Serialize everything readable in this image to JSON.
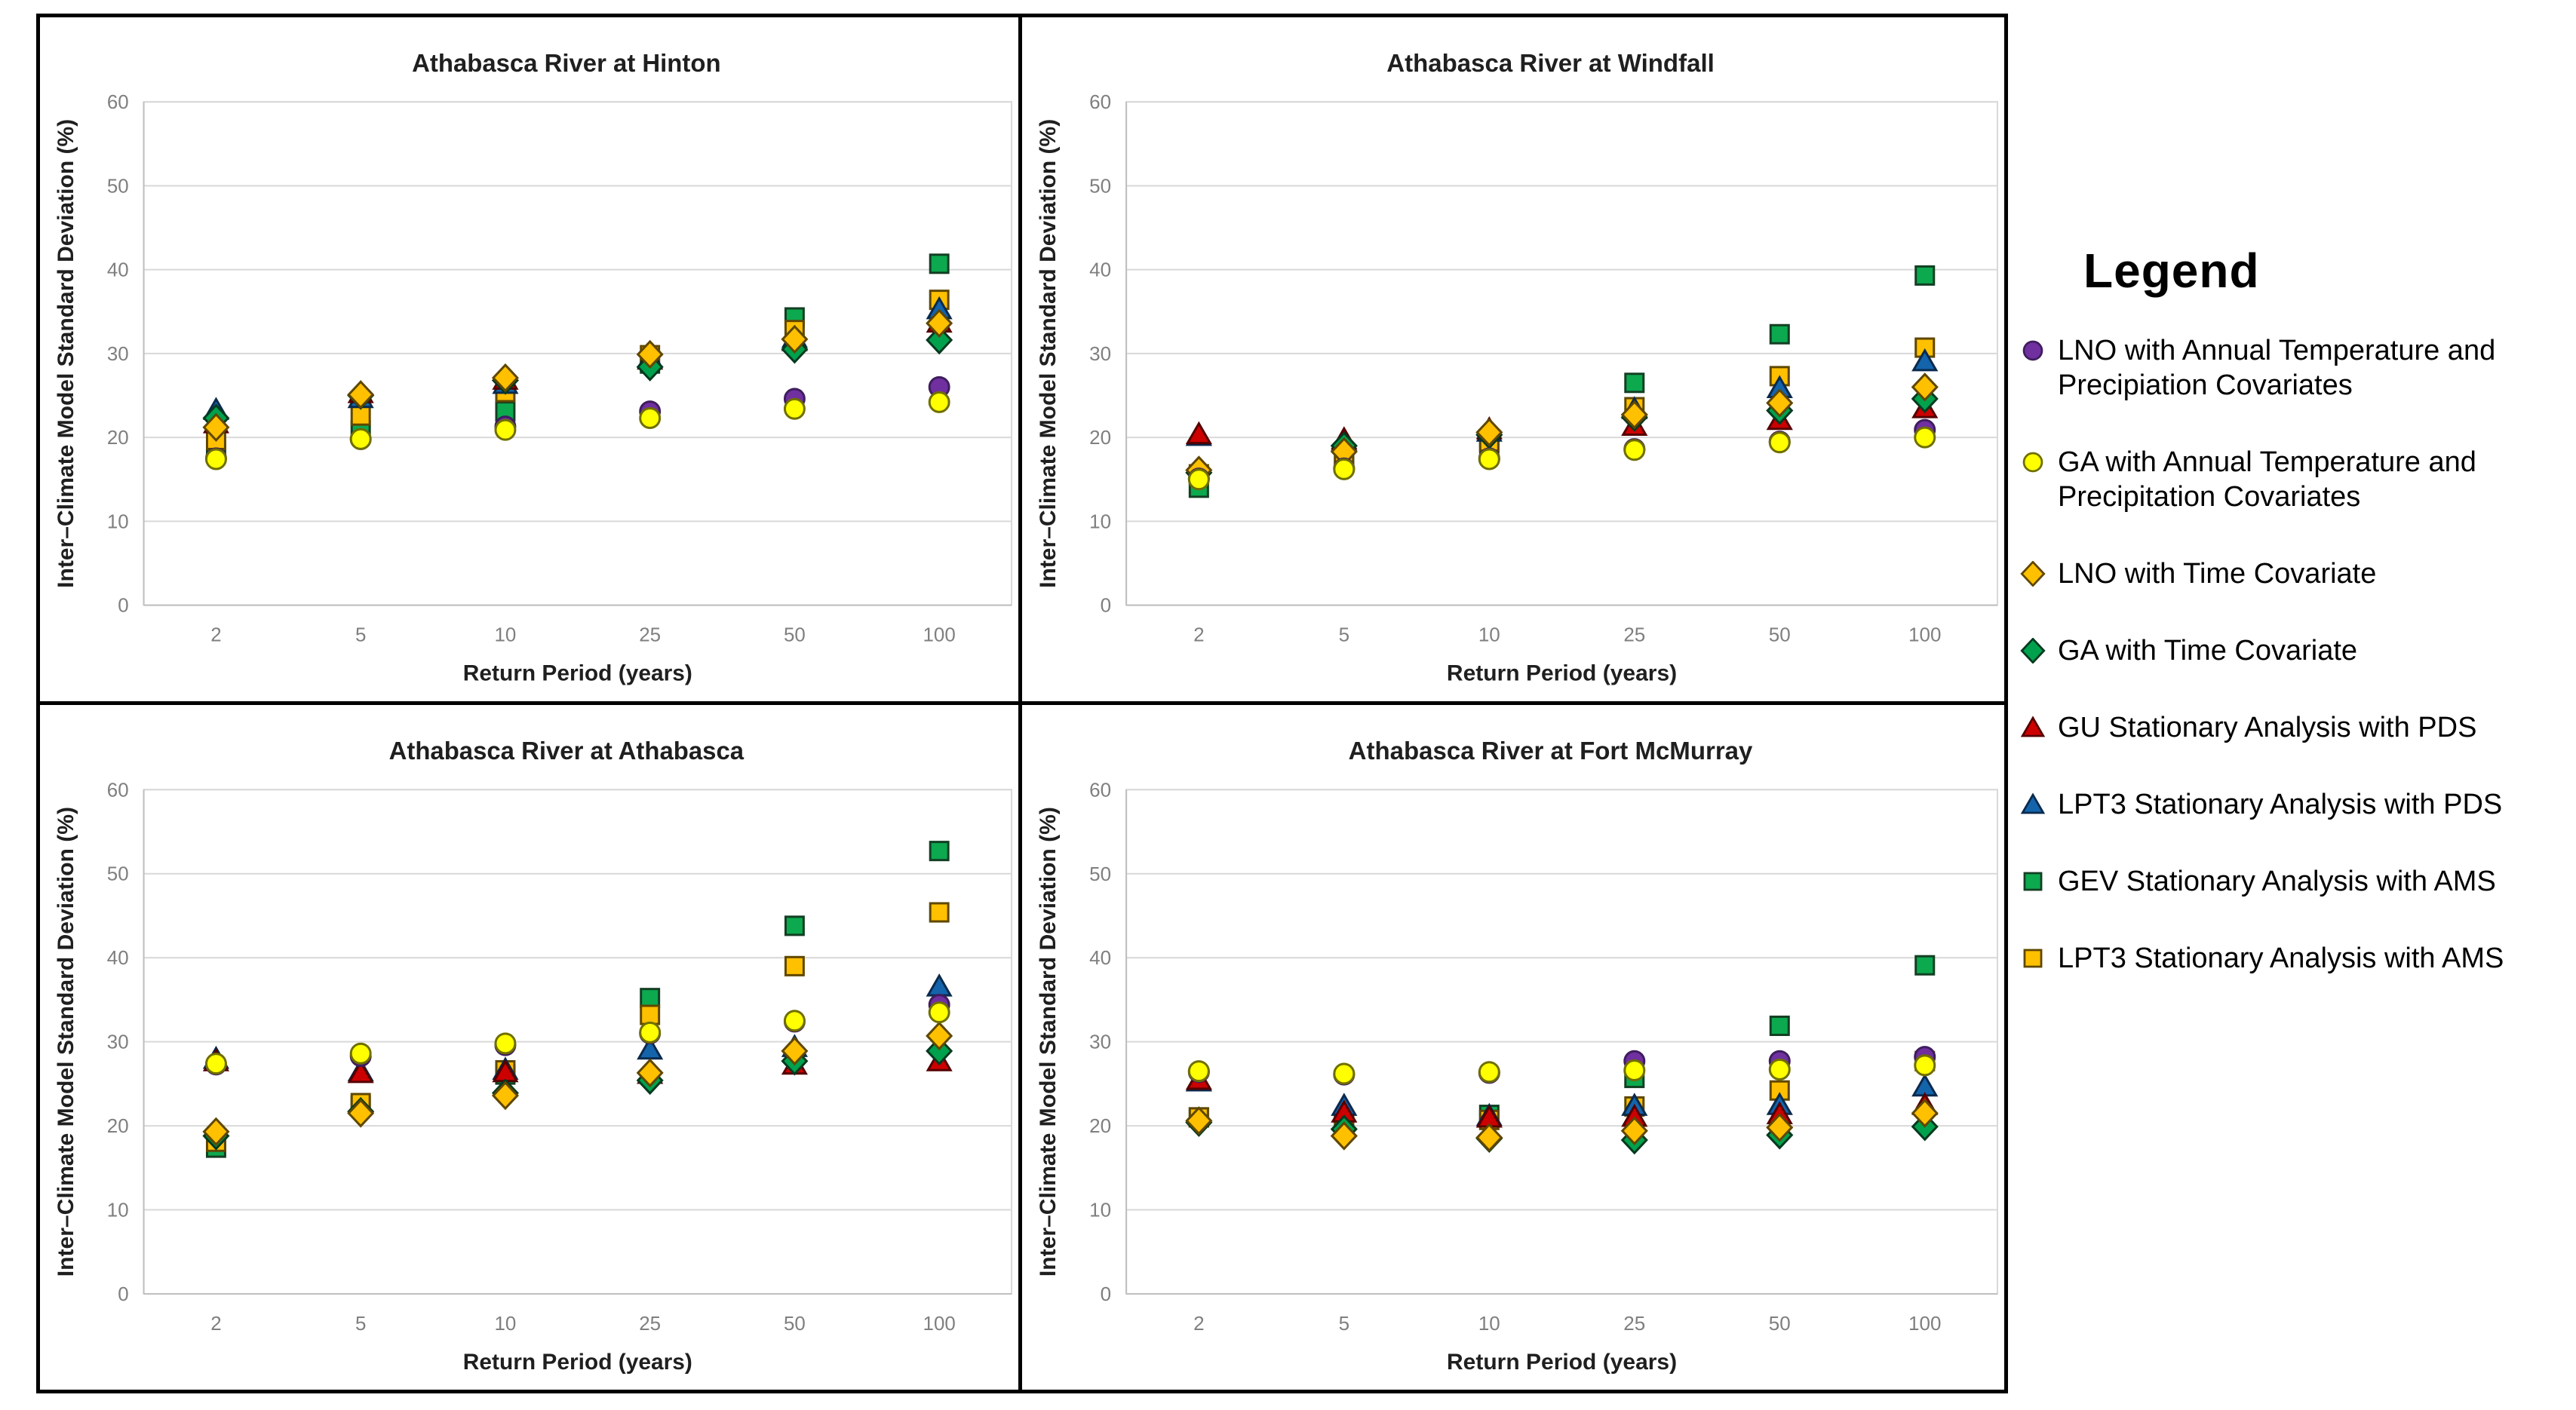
{
  "legend": {
    "title": "Legend",
    "position": "right",
    "entries": [
      {
        "key": "lno-covariates",
        "label": "LNO with Annual Temperature and Precipiation Covariates",
        "marker": "circle",
        "fill": "#7030A0",
        "stroke": "#3F1D5E"
      },
      {
        "key": "ga-covariates",
        "label": "GA with Annual Temperature and Precipitation Covariates",
        "marker": "circle",
        "fill": "#FFFF00",
        "stroke": "#6F6F00"
      },
      {
        "key": "lno-time",
        "label": "LNO with Time Covariate",
        "marker": "diamond",
        "fill": "#FFC000",
        "stroke": "#5F4700"
      },
      {
        "key": "ga-time",
        "label": "GA with Time Covariate",
        "marker": "diamond",
        "fill": "#00A14D",
        "stroke": "#05391F"
      },
      {
        "key": "gu-pds",
        "label": "GU Stationary Analysis with PDS",
        "marker": "triangle",
        "fill": "#CC0000",
        "stroke": "#550000"
      },
      {
        "key": "lpt3-pds",
        "label": "LPT3 Stationary Analysis with PDS",
        "marker": "triangle",
        "fill": "#1464AC",
        "stroke": "#0A2A4D"
      },
      {
        "key": "gev-ams",
        "label": "GEV Stationary Analysis with AMS",
        "marker": "square",
        "fill": "#0CA94F",
        "stroke": "#133F23"
      },
      {
        "key": "lpt3-ams",
        "label": "LPT3 Stationary Analysis with AMS",
        "marker": "square",
        "fill": "#FFC000",
        "stroke": "#5F4700"
      }
    ]
  },
  "chart_data": [
    {
      "type": "scatter",
      "key": "hinton",
      "title": "Athabasca River at Hinton",
      "xlabel": "Return Period (years)",
      "ylabel": "Inter–Climate Model Standard Deviation (%)",
      "categories": [
        2,
        5,
        10,
        25,
        50,
        100
      ],
      "xticklabels": [
        "2",
        "5",
        "10",
        "25",
        "50",
        "100"
      ],
      "ylim": [
        0,
        60
      ],
      "yticks": [
        0,
        10,
        20,
        30,
        40,
        50,
        60
      ],
      "grid": true,
      "series": [
        {
          "name": "LNO with Annual Temperature and Precipiation Covariates",
          "values": [
            17.5,
            19.8,
            21.3,
            23.1,
            24.6,
            26.0
          ]
        },
        {
          "name": "GA with Annual Temperature and Precipitation Covariates",
          "values": [
            17.4,
            19.8,
            20.9,
            22.3,
            23.4,
            24.2
          ]
        },
        {
          "name": "LNO with Time Covariate",
          "values": [
            21.2,
            25.1,
            27.1,
            29.9,
            31.7,
            33.6
          ]
        },
        {
          "name": "GA with Time Covariate",
          "values": [
            22.3,
            25.0,
            26.8,
            28.4,
            30.5,
            31.6
          ]
        },
        {
          "name": "GU Stationary Analysis with PDS",
          "values": [
            21.7,
            25.3,
            26.9,
            29.3,
            31.5,
            33.7
          ]
        },
        {
          "name": "LPT3 Stationary Analysis with PDS",
          "values": [
            23.3,
            24.7,
            26.4,
            29.5,
            31.9,
            35.3
          ]
        },
        {
          "name": "GEV Stationary Analysis with AMS",
          "values": [
            18.4,
            20.8,
            23.1,
            28.8,
            34.3,
            40.7
          ]
        },
        {
          "name": "LPT3 Stationary Analysis with AMS",
          "values": [
            19.7,
            22.6,
            25.4,
            29.8,
            32.8,
            36.4
          ]
        }
      ]
    },
    {
      "type": "scatter",
      "key": "windfall",
      "title": "Athabasca River at Windfall",
      "xlabel": "Return Period (years)",
      "ylabel": "Inter–Climate Model Standard Deviation (%)",
      "categories": [
        2,
        5,
        10,
        25,
        50,
        100
      ],
      "xticklabels": [
        "2",
        "5",
        "10",
        "25",
        "50",
        "100"
      ],
      "ylim": [
        0,
        60
      ],
      "yticks": [
        0,
        10,
        20,
        30,
        40,
        50,
        60
      ],
      "grid": true,
      "series": [
        {
          "name": "LNO with Annual Temperature and Precipiation Covariates",
          "values": [
            15.1,
            16.3,
            17.5,
            18.6,
            19.5,
            20.9
          ]
        },
        {
          "name": "GA with Annual Temperature and Precipitation Covariates",
          "values": [
            15.0,
            16.2,
            17.4,
            18.5,
            19.4,
            20.0
          ]
        },
        {
          "name": "LNO with Time Covariate",
          "values": [
            16.1,
            18.3,
            20.6,
            22.7,
            24.1,
            26.0
          ]
        },
        {
          "name": "GA with Time Covariate",
          "values": [
            15.8,
            19.0,
            20.3,
            22.4,
            23.2,
            24.6
          ]
        },
        {
          "name": "GU Stationary Analysis with PDS",
          "values": [
            20.4,
            19.8,
            21.0,
            21.4,
            22.1,
            23.5
          ]
        },
        {
          "name": "LPT3 Stationary Analysis with PDS",
          "values": [
            20.2,
            19.6,
            20.7,
            23.4,
            25.9,
            29.1
          ]
        },
        {
          "name": "GEV Stationary Analysis with AMS",
          "values": [
            14.0,
            17.1,
            19.3,
            26.5,
            32.3,
            39.3
          ]
        },
        {
          "name": "LPT3 Stationary Analysis with AMS",
          "values": [
            15.6,
            17.0,
            19.5,
            23.6,
            27.3,
            30.7
          ]
        }
      ]
    },
    {
      "type": "scatter",
      "key": "athabasca",
      "title": "Athabasca River at Athabasca",
      "xlabel": "Return Period (years)",
      "ylabel": "Inter–Climate Model Standard Deviation (%)",
      "categories": [
        2,
        5,
        10,
        25,
        50,
        100
      ],
      "xticklabels": [
        "2",
        "5",
        "10",
        "25",
        "50",
        "100"
      ],
      "ylim": [
        0,
        60
      ],
      "yticks": [
        0,
        10,
        20,
        30,
        40,
        50,
        60
      ],
      "grid": true,
      "series": [
        {
          "name": "LNO with Annual Temperature and Precipiation Covariates",
          "values": [
            27.3,
            28.3,
            29.6,
            31.0,
            32.4,
            34.4
          ]
        },
        {
          "name": "GA with Annual Temperature and Precipitation Covariates",
          "values": [
            27.4,
            28.6,
            29.8,
            31.1,
            32.5,
            33.5
          ]
        },
        {
          "name": "LNO with Time Covariate",
          "values": [
            19.3,
            21.5,
            23.6,
            26.3,
            28.9,
            30.7
          ]
        },
        {
          "name": "GA with Time Covariate",
          "values": [
            18.8,
            21.7,
            23.9,
            25.4,
            27.7,
            28.9
          ]
        },
        {
          "name": "GU Stationary Analysis with PDS",
          "values": [
            27.7,
            26.3,
            26.4,
            26.2,
            27.3,
            27.7
          ]
        },
        {
          "name": "LPT3 Stationary Analysis with PDS",
          "values": [
            28.0,
            26.5,
            26.7,
            29.1,
            29.4,
            36.6
          ]
        },
        {
          "name": "GEV Stationary Analysis with AMS",
          "values": [
            17.4,
            22.4,
            26.1,
            35.2,
            43.8,
            52.7
          ]
        },
        {
          "name": "LPT3 Stationary Analysis with AMS",
          "values": [
            18.1,
            22.7,
            26.6,
            33.2,
            39.0,
            45.4
          ]
        }
      ]
    },
    {
      "type": "scatter",
      "key": "fort-mcmurray",
      "title": "Athabasca River at Fort McMurray",
      "xlabel": "Return Period (years)",
      "ylabel": "Inter–Climate Model Standard Deviation (%)",
      "categories": [
        2,
        5,
        10,
        25,
        50,
        100
      ],
      "xticklabels": [
        "2",
        "5",
        "10",
        "25",
        "50",
        "100"
      ],
      "ylim": [
        0,
        60
      ],
      "yticks": [
        0,
        10,
        20,
        30,
        40,
        50,
        60
      ],
      "grid": true,
      "series": [
        {
          "name": "LNO with Annual Temperature and Precipiation Covariates",
          "values": [
            26.4,
            26.1,
            26.3,
            27.7,
            27.7,
            28.2
          ]
        },
        {
          "name": "GA with Annual Temperature and Precipitation Covariates",
          "values": [
            26.5,
            26.2,
            26.4,
            26.6,
            26.7,
            27.2
          ]
        },
        {
          "name": "LNO with Time Covariate",
          "values": [
            20.6,
            18.8,
            18.6,
            19.4,
            19.8,
            21.5
          ]
        },
        {
          "name": "GA with Time Covariate",
          "values": [
            20.4,
            19.6,
            18.5,
            18.3,
            18.9,
            19.9
          ]
        },
        {
          "name": "GU Stationary Analysis with PDS",
          "values": [
            25.5,
            21.6,
            21.0,
            21.1,
            21.4,
            22.5
          ]
        },
        {
          "name": "LPT3 Stationary Analysis with PDS",
          "values": [
            25.3,
            22.4,
            21.2,
            22.4,
            22.5,
            24.7
          ]
        },
        {
          "name": "GEV Stationary Analysis with AMS",
          "values": [
            21.0,
            20.5,
            21.3,
            25.7,
            31.9,
            39.1
          ]
        },
        {
          "name": "LPT3 Stationary Analysis with AMS",
          "values": [
            21.0,
            20.6,
            20.7,
            22.3,
            24.2,
            27.7
          ]
        }
      ]
    }
  ],
  "style": {
    "gridline_color": "#D9D9D9",
    "axis_line_color": "#BFBFBF",
    "tick_label_color": "#7F7F7F",
    "title_color": "#1F1F1F",
    "panel_border_color": "#000000"
  }
}
